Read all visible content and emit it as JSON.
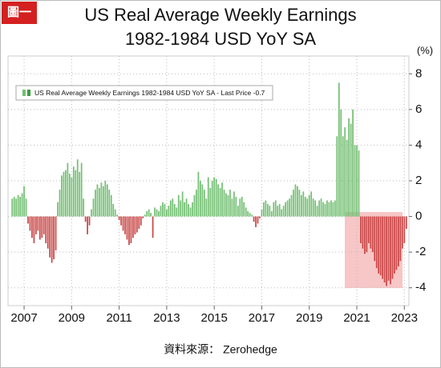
{
  "badge": "圖一",
  "chart_data": {
    "type": "bar",
    "title": "US Real Average Weekly Earnings",
    "subtitle": "1982-1984 USD YoY SA",
    "y_label": "(%)",
    "source": "資料來源： Zerohedge",
    "grid": true,
    "ylim": [
      -5,
      9
    ],
    "yticks": [
      -4,
      -2,
      0,
      2,
      4,
      6,
      8
    ],
    "categories": [
      null,
      null,
      null,
      null,
      null,
      null,
      "2007",
      null,
      null,
      null,
      null,
      null,
      null,
      null,
      null,
      null,
      null,
      null,
      null,
      null,
      null,
      null,
      null,
      null,
      null,
      null,
      null,
      null,
      null,
      null,
      "2009",
      null,
      null,
      null,
      null,
      null,
      null,
      null,
      null,
      null,
      null,
      null,
      null,
      null,
      null,
      null,
      null,
      null,
      null,
      null,
      null,
      null,
      null,
      null,
      "2011",
      null,
      null,
      null,
      null,
      null,
      null,
      null,
      null,
      null,
      null,
      null,
      null,
      null,
      null,
      null,
      null,
      null,
      null,
      null,
      null,
      null,
      null,
      null,
      "2013",
      null,
      null,
      null,
      null,
      null,
      null,
      null,
      null,
      null,
      null,
      null,
      null,
      null,
      null,
      null,
      null,
      null,
      null,
      null,
      null,
      null,
      null,
      null,
      "2015",
      null,
      null,
      null,
      null,
      null,
      null,
      null,
      null,
      null,
      null,
      null,
      null,
      null,
      null,
      null,
      null,
      null,
      null,
      null,
      null,
      null,
      null,
      null,
      "2017",
      null,
      null,
      null,
      null,
      null,
      null,
      null,
      null,
      null,
      null,
      null,
      null,
      null,
      null,
      null,
      null,
      null,
      null,
      null,
      null,
      null,
      null,
      null,
      "2019",
      null,
      null,
      null,
      null,
      null,
      null,
      null,
      null,
      null,
      null,
      null,
      null,
      null,
      null,
      null,
      null,
      null,
      null,
      null,
      null,
      null,
      null,
      null,
      "2021",
      null,
      null,
      null,
      null,
      null,
      null,
      null,
      null,
      null,
      null,
      null,
      null,
      null,
      null,
      null,
      null,
      null,
      null,
      null,
      null,
      null,
      null,
      null,
      "2023",
      null
    ],
    "series": [
      {
        "name": "US Real Average Weekly Earnings 1982-1984 USD YoY SA - Last Price -0.7",
        "color": "#74bf74",
        "negative_color": "#c94747",
        "values": [
          1.0,
          1.1,
          1.0,
          1.2,
          1.1,
          1.3,
          1.7,
          1.0,
          -0.4,
          -0.8,
          -1.2,
          -1.5,
          -1.0,
          -0.8,
          -1.3,
          -1.2,
          -1.0,
          -1.5,
          -1.8,
          -2.3,
          -2.6,
          -2.4,
          -1.9,
          0.8,
          1.5,
          2.3,
          2.5,
          2.6,
          3.0,
          2.4,
          2.2,
          2.8,
          2.6,
          3.2,
          2.5,
          3.0,
          1.0,
          -0.3,
          -1.0,
          -0.5,
          0.4,
          1.0,
          1.5,
          1.8,
          1.6,
          1.9,
          1.7,
          2.0,
          1.8,
          1.5,
          1.2,
          0.7,
          0.4,
          0.1,
          -0.2,
          -0.5,
          -0.8,
          -1.0,
          -1.3,
          -1.6,
          -1.5,
          -1.2,
          -1.0,
          -0.9,
          -0.7,
          -0.5,
          -0.1,
          0.1,
          0.3,
          0.4,
          0.2,
          -1.2,
          0.5,
          0.4,
          0.3,
          0.6,
          0.8,
          0.7,
          0.4,
          0.6,
          0.9,
          1.0,
          0.7,
          0.5,
          1.2,
          0.9,
          1.4,
          0.8,
          1.0,
          0.7,
          0.5,
          0.8,
          1.2,
          1.5,
          2.5,
          2.0,
          1.8,
          1.5,
          1.0,
          2.2,
          1.6,
          2.0,
          2.2,
          2.1,
          1.8,
          1.6,
          1.9,
          1.5,
          1.3,
          1.2,
          1.5,
          1.0,
          1.4,
          1.1,
          0.6,
          1.0,
          1.1,
          0.8,
          0.5,
          0.3,
          0.2,
          0.1,
          -0.3,
          -0.6,
          -0.4,
          -0.1,
          0.4,
          0.8,
          0.9,
          0.7,
          0.6,
          0.3,
          0.8,
          0.9,
          0.6,
          0.7,
          0.4,
          0.6,
          0.8,
          0.9,
          1.0,
          1.2,
          1.5,
          1.8,
          1.7,
          1.5,
          1.2,
          1.4,
          1.1,
          1.0,
          1.2,
          1.4,
          1.0,
          0.9,
          0.6,
          0.9,
          1.0,
          0.8,
          0.7,
          0.9,
          0.8,
          0.9,
          0.8,
          0.9,
          4.5,
          7.5,
          6.0,
          4.5,
          5.0,
          4.3,
          5.5,
          5.2,
          6.0,
          4.0,
          4.0,
          3.7,
          -1.5,
          -1.8,
          -2.1,
          -2.0,
          -1.5,
          -1.8,
          -2.0,
          -2.5,
          -2.9,
          -3.2,
          -3.3,
          -3.5,
          -3.7,
          -3.9,
          -3.6,
          -3.8,
          -3.5,
          -3.2,
          -3.0,
          -2.8,
          -2.5,
          -1.8,
          -1.5,
          -0.7
        ]
      }
    ]
  }
}
